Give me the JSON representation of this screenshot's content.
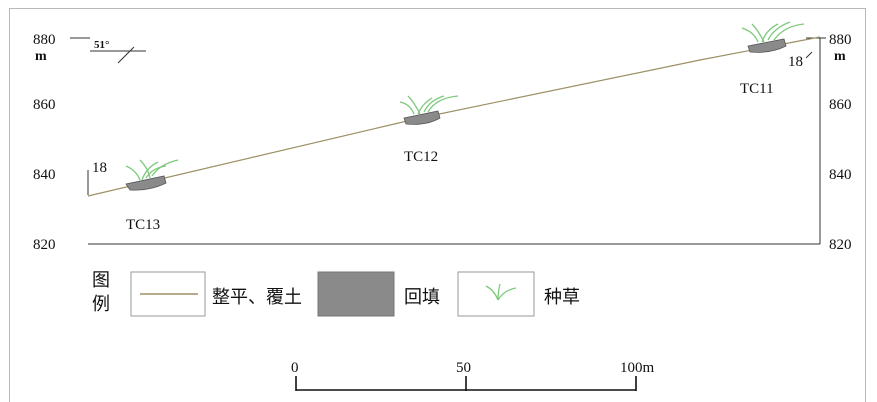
{
  "colors": {
    "slope_line": "#9c9064",
    "backfill": "#8a8a8a",
    "grass": "#7ec97c",
    "axis": "#333333",
    "frame": "#b9b9b9"
  },
  "left_axis": {
    "ticks": [
      "880",
      "860",
      "840",
      "820"
    ],
    "unit": "m"
  },
  "right_axis": {
    "ticks": [
      "880",
      "860",
      "840",
      "820"
    ],
    "unit": "m"
  },
  "slope_angle_label": "51°",
  "left_edge_label": "18",
  "right_edge_label": "18",
  "terraces": [
    {
      "label": "TC13"
    },
    {
      "label": "TC12"
    },
    {
      "label": "TC11"
    }
  ],
  "legend": {
    "title": "图\n例",
    "title_top": "图",
    "title_bottom": "例",
    "items": [
      {
        "label": "整平、覆土",
        "symbol": "line"
      },
      {
        "label": "回填",
        "symbol": "fill"
      },
      {
        "label": "种草",
        "symbol": "grass"
      }
    ]
  },
  "scale_bar": {
    "labels": [
      "0",
      "50",
      "100m"
    ]
  }
}
